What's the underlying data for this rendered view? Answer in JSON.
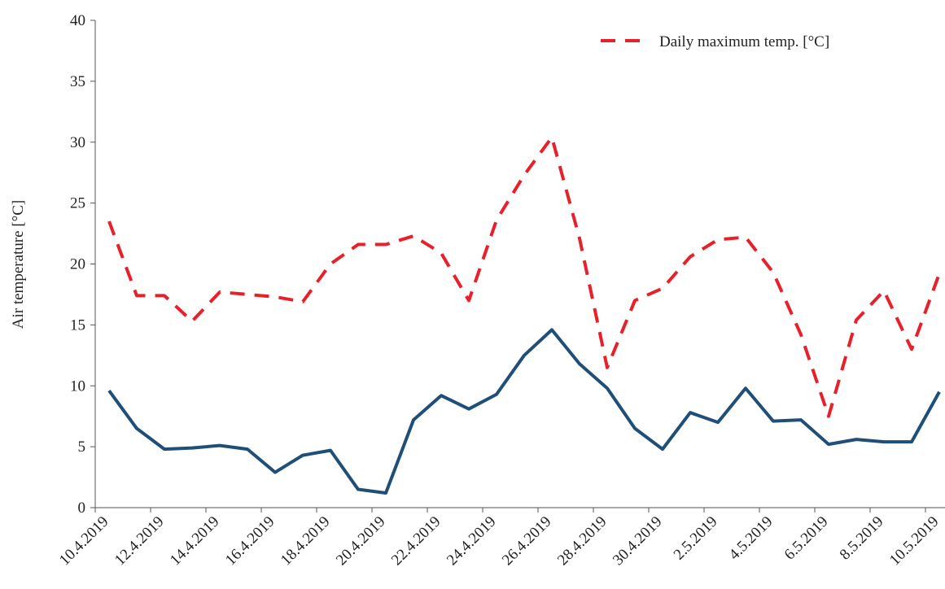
{
  "chart_data": {
    "type": "line",
    "ylabel": "Air temperature  [°C]",
    "categories": [
      "10.4.2019",
      null,
      "12.4.2019",
      null,
      "14.4.2019",
      null,
      "16.4.2019",
      null,
      "18.4.2019",
      null,
      "20.4.2019",
      null,
      "22.4.2019",
      null,
      "24.4.2019",
      null,
      "26.4.2019",
      null,
      "28.4.2019",
      null,
      "30.4.2019",
      null,
      "2.5.2019",
      null,
      "4.5.2019",
      null,
      "6.5.2019",
      null,
      "8.5.2019",
      null,
      "10.5.2019"
    ],
    "series": [
      {
        "name": "Daily maximum temp. [°C]",
        "color": "#e8202a",
        "dashed": true,
        "values": [
          23.5,
          17.4,
          17.4,
          15.3,
          17.7,
          17.5,
          17.3,
          16.9,
          20.0,
          21.6,
          21.6,
          22.3,
          20.9,
          17.0,
          23.6,
          27.3,
          30.4,
          22.1,
          11.5,
          17.0,
          18.0,
          20.6,
          22.0,
          22.2,
          19.3,
          14.2,
          7.5,
          15.4,
          17.8,
          13.0,
          19.2
        ]
      },
      {
        "color": "#1f4e79",
        "dashed": false,
        "values": [
          9.6,
          6.5,
          4.8,
          4.9,
          5.1,
          4.8,
          2.9,
          4.3,
          4.7,
          1.5,
          1.2,
          7.2,
          9.2,
          8.1,
          9.3,
          12.5,
          14.6,
          11.8,
          9.8,
          6.5,
          4.8,
          7.8,
          7.0,
          9.8,
          7.1,
          7.2,
          5.2,
          5.6,
          5.4,
          5.4,
          9.5
        ]
      }
    ],
    "ylim": [
      0,
      40
    ],
    "yticks": [
      0,
      5,
      10,
      15,
      20,
      25,
      30,
      35,
      40
    ],
    "legend": "top-right"
  }
}
